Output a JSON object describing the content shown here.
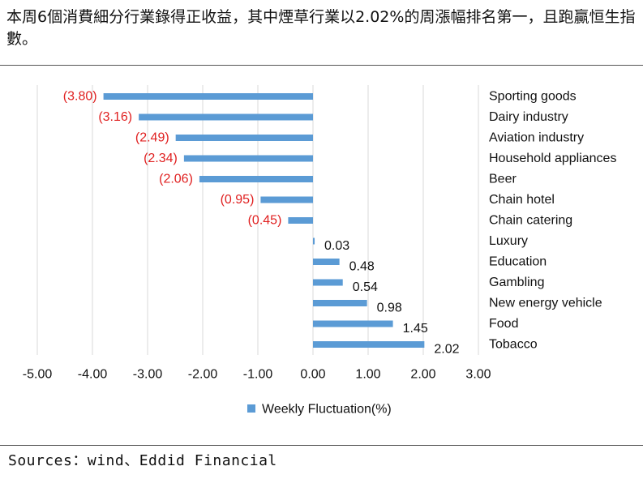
{
  "header": {
    "title": "本周6個消費細分行業錄得正收益，其中煙草行業以2.02%的周漲幅排名第一，且跑贏恒生指數。"
  },
  "footer": {
    "source": "Sources：wind、Eddid Financial"
  },
  "colors": {
    "bar": "#5b9bd5",
    "negative_label": "#e02020",
    "positive_label": "#111111",
    "grid": "#d9d9d9"
  },
  "chart_data": {
    "type": "bar",
    "orientation": "horizontal",
    "categories": [
      "Sporting goods",
      "Dairy industry",
      "Aviation industry",
      "Household appliances",
      "Beer",
      "Chain hotel",
      "Chain catering",
      "Luxury",
      "Education",
      "Gambling",
      "New energy vehicle",
      "Food",
      "Tobacco"
    ],
    "series": [
      {
        "name": "Weekly Fluctuation(%)",
        "values": [
          -3.8,
          -3.16,
          -2.49,
          -2.34,
          -2.06,
          -0.95,
          -0.45,
          0.03,
          0.48,
          0.54,
          0.98,
          1.45,
          2.02
        ]
      }
    ],
    "value_labels": [
      "(3.80)",
      "(3.16)",
      "(2.49)",
      "(2.34)",
      "(2.06)",
      "(0.95)",
      "(0.45)",
      "0.03",
      "0.48",
      "0.54",
      "0.98",
      "1.45",
      "2.02"
    ],
    "xlim": [
      -5,
      3
    ],
    "xticks": [
      -5,
      -4,
      -3,
      -2,
      -1,
      0,
      1,
      2,
      3
    ],
    "xtick_labels": [
      "-5.00",
      "-4.00",
      "-3.00",
      "-2.00",
      "-1.00",
      "0.00",
      "1.00",
      "2.00",
      "3.00"
    ],
    "grid": true,
    "legend_position": "bottom"
  }
}
